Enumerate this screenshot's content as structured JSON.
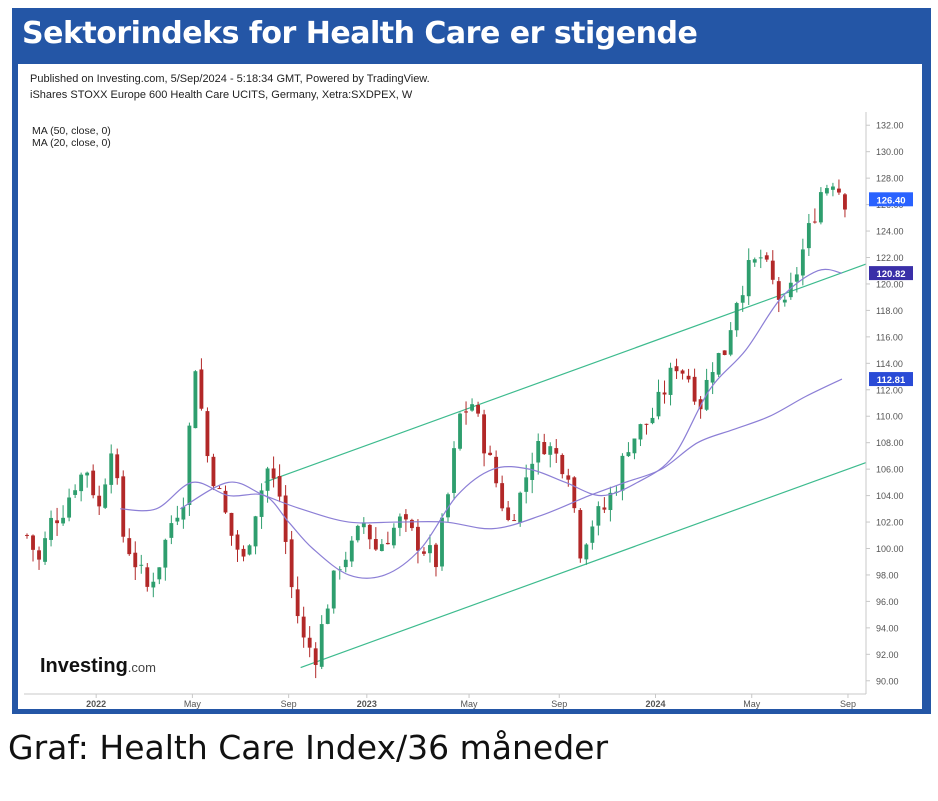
{
  "banner": {
    "title": "Sektorindeks for Health Care er stigende"
  },
  "caption": "Graf: Health Care Index/36 måneder",
  "colors": {
    "frame": "#2456a6",
    "up": "#2e9e6e",
    "down": "#b22828",
    "channel": "#3dbb8e",
    "ma": "#8c7fd6"
  },
  "chart_data": {
    "type": "candlestick",
    "header_line1": "Published on Investing.com, 5/Sep/2024 - 5:18:34 GMT, Powered by TradingView.",
    "header_line2": "iShares STOXX Europe 600 Health Care UCITS, Germany, Xetra:SXDPEX, W",
    "legend": [
      "MA (50, close, 0)",
      "MA (20, close, 0)"
    ],
    "brand": "Investing",
    "brand_suffix": ".com",
    "ylim": [
      89,
      133
    ],
    "yticks": [
      "132.00",
      "130.00",
      "128.00",
      "126.00",
      "124.00",
      "122.00",
      "120.00",
      "118.00",
      "116.00",
      "114.00",
      "112.00",
      "110.00",
      "108.00",
      "106.00",
      "104.00",
      "102.00",
      "100.00",
      "98.00",
      "96.00",
      "94.00",
      "92.00",
      "90.00"
    ],
    "xlim": [
      0,
      140
    ],
    "xticks": [
      {
        "label": "2022",
        "x": 12
      },
      {
        "label": "May",
        "x": 28
      },
      {
        "label": "Sep",
        "x": 44
      },
      {
        "label": "2023",
        "x": 57
      },
      {
        "label": "May",
        "x": 74
      },
      {
        "label": "Sep",
        "x": 89
      },
      {
        "label": "2024",
        "x": 105
      },
      {
        "label": "May",
        "x": 121
      },
      {
        "label": "Sep",
        "x": 137
      }
    ],
    "price_badges": [
      {
        "label": "126.40",
        "value": 126.4,
        "color": "#2962ff"
      },
      {
        "label": "120.82",
        "value": 120.82,
        "color": "#3a2fa8"
      },
      {
        "label": "112.81",
        "value": 112.81,
        "color": "#2a4bd6"
      }
    ],
    "candle_anchors": [
      [
        0,
        101
      ],
      [
        2,
        99
      ],
      [
        4,
        102
      ],
      [
        6,
        103
      ],
      [
        8,
        105
      ],
      [
        10,
        106
      ],
      [
        12,
        103
      ],
      [
        14,
        108
      ],
      [
        16,
        101
      ],
      [
        18,
        99
      ],
      [
        20,
        97
      ],
      [
        22,
        99
      ],
      [
        24,
        102
      ],
      [
        26,
        104
      ],
      [
        28,
        114
      ],
      [
        30,
        107
      ],
      [
        32,
        104
      ],
      [
        34,
        101
      ],
      [
        36,
        99
      ],
      [
        38,
        103
      ],
      [
        40,
        106
      ],
      [
        42,
        104
      ],
      [
        44,
        97
      ],
      [
        46,
        93
      ],
      [
        48,
        92
      ],
      [
        50,
        96
      ],
      [
        52,
        99
      ],
      [
        54,
        100
      ],
      [
        56,
        102
      ],
      [
        58,
        100
      ],
      [
        60,
        101
      ],
      [
        62,
        102
      ],
      [
        64,
        101
      ],
      [
        66,
        100
      ],
      [
        68,
        99
      ],
      [
        70,
        104
      ],
      [
        72,
        110
      ],
      [
        74,
        111
      ],
      [
        76,
        108
      ],
      [
        78,
        105
      ],
      [
        80,
        102
      ],
      [
        82,
        104
      ],
      [
        84,
        107
      ],
      [
        86,
        108
      ],
      [
        88,
        107
      ],
      [
        90,
        106
      ],
      [
        92,
        100
      ],
      [
        94,
        102
      ],
      [
        96,
        103
      ],
      [
        98,
        105
      ],
      [
        100,
        108
      ],
      [
        102,
        109
      ],
      [
        104,
        110
      ],
      [
        106,
        112
      ],
      [
        108,
        114
      ],
      [
        110,
        113
      ],
      [
        112,
        111
      ],
      [
        114,
        114
      ],
      [
        116,
        115
      ],
      [
        118,
        119
      ],
      [
        120,
        121
      ],
      [
        122,
        122
      ],
      [
        124,
        120
      ],
      [
        126,
        118
      ],
      [
        128,
        121
      ],
      [
        130,
        124
      ],
      [
        132,
        127
      ],
      [
        134,
        128
      ],
      [
        136,
        126.4
      ]
    ],
    "ma_fast_anchors": [
      [
        16,
        103
      ],
      [
        22,
        103
      ],
      [
        28,
        105
      ],
      [
        34,
        104
      ],
      [
        40,
        104
      ],
      [
        44,
        102
      ],
      [
        48,
        100
      ],
      [
        54,
        98
      ],
      [
        60,
        98
      ],
      [
        66,
        100
      ],
      [
        72,
        104
      ],
      [
        78,
        106
      ],
      [
        84,
        106
      ],
      [
        90,
        105
      ],
      [
        96,
        104
      ],
      [
        102,
        105
      ],
      [
        108,
        107
      ],
      [
        114,
        112
      ],
      [
        120,
        115
      ],
      [
        126,
        119
      ],
      [
        132,
        121
      ],
      [
        136,
        120.82
      ]
    ],
    "ma_slow_anchors": [
      [
        26,
        103
      ],
      [
        34,
        105
      ],
      [
        40,
        104
      ],
      [
        46,
        103
      ],
      [
        54,
        102
      ],
      [
        62,
        102
      ],
      [
        70,
        102
      ],
      [
        78,
        101.5
      ],
      [
        86,
        102.5
      ],
      [
        94,
        104
      ],
      [
        100,
        105
      ],
      [
        106,
        106
      ],
      [
        112,
        108
      ],
      [
        118,
        109
      ],
      [
        124,
        110
      ],
      [
        130,
        111.5
      ],
      [
        136,
        112.81
      ]
    ],
    "channel_upper": [
      [
        40,
        105
      ],
      [
        140,
        121.5
      ]
    ],
    "channel_lower": [
      [
        46,
        91
      ],
      [
        140,
        106.5
      ]
    ]
  }
}
